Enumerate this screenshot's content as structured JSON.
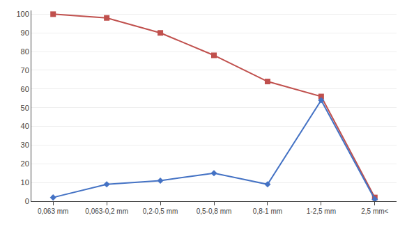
{
  "chart_data": {
    "type": "line",
    "categories": [
      "0,063 mm",
      "0,063-0,2 mm",
      "0,2-0,5 mm",
      "0,5-0,8 mm",
      "0,8-1 mm",
      "1-2,5 mm",
      "2,5 mm<"
    ],
    "series": [
      {
        "color": "#C0504D",
        "marker": "square",
        "values": [
          100,
          98,
          90,
          78,
          64,
          56,
          2
        ]
      },
      {
        "color": "#4472C4",
        "marker": "diamond",
        "values": [
          2,
          9,
          11,
          15,
          9,
          54,
          1
        ]
      }
    ],
    "ylim": [
      0,
      102
    ],
    "yticks": [
      0,
      10,
      20,
      30,
      40,
      50,
      60,
      70,
      80,
      90,
      100
    ],
    "grid": true
  }
}
